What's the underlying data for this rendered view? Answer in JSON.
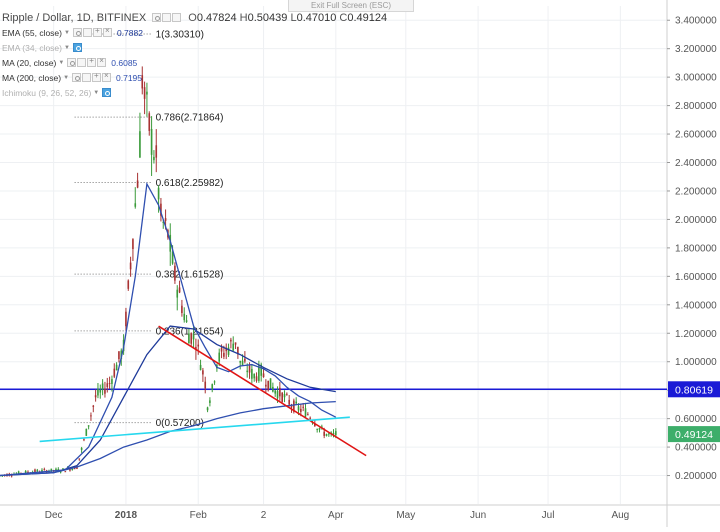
{
  "header": {
    "exit_fullscreen": "Exit Full Screen (ESC)",
    "symbol": "Ripple / Dollar, 1D, BITFINEX",
    "ohlc": {
      "O": "0.47824",
      "H": "0.50439",
      "L": "0.47010",
      "C": "0.49124"
    }
  },
  "indicators": [
    {
      "label": "EMA (55, close)",
      "value": "0.7882",
      "color": "#1e3a9a",
      "enabled": true
    },
    {
      "label": "EMA (34, close)",
      "value": "",
      "color": "#b0b0b0",
      "enabled": false
    },
    {
      "label": "MA (20, close)",
      "value": "0.6085",
      "color": "#2f4fb0",
      "enabled": true
    },
    {
      "label": "MA (200, close)",
      "value": "0.7195",
      "color": "#2f4fb0",
      "enabled": true
    },
    {
      "label": "Ichimoku (9, 26, 52, 26)",
      "value": "",
      "color": "#b0b0b0",
      "enabled": false
    }
  ],
  "chart_data": {
    "type": "candlestick",
    "title": "Ripple / Dollar, 1D, BITFINEX",
    "ylim": [
      0.0,
      3.5
    ],
    "y_ticks": [
      "0.200000",
      "0.400000",
      "0.600000",
      "0.800000",
      "1.000000",
      "1.200000",
      "1.400000",
      "1.600000",
      "1.800000",
      "2.000000",
      "2.200000",
      "2.400000",
      "2.600000",
      "2.800000",
      "3.000000",
      "3.200000",
      "3.400000"
    ],
    "x_ticks": [
      "Dec",
      "2018",
      "Feb",
      "2",
      "Apr",
      "May",
      "Jun",
      "Jul",
      "Aug"
    ],
    "x_tick_days": [
      0,
      31,
      62,
      90,
      121,
      151,
      182,
      212,
      243
    ],
    "x_range_days": [
      -23,
      263
    ],
    "last_price": {
      "value": 0.49124,
      "label": "0.49124",
      "color": "#3dae6a"
    },
    "horizontal_line": {
      "value": 0.80619,
      "label": "0.80619",
      "color": "#1a1ad6"
    },
    "fibonacci": [
      {
        "ratio": "1",
        "price": 3.3031,
        "label": "1(3.30310)"
      },
      {
        "ratio": "0.786",
        "price": 2.71864,
        "label": "0.786(2.71864)"
      },
      {
        "ratio": "0.618",
        "price": 2.25982,
        "label": "0.618(2.25982)"
      },
      {
        "ratio": "0.382",
        "price": 1.61528,
        "label": "0.382(1.61528)"
      },
      {
        "ratio": "0.236",
        "price": 1.21654,
        "label": "0.236(1.21654)"
      },
      {
        "ratio": "0",
        "price": 0.572,
        "label": "0(0.57200)"
      }
    ],
    "fib_x_days": [
      9,
      42
    ],
    "trendlines": [
      {
        "name": "resistance",
        "color": "#e01515",
        "points": [
          [
            45,
            1.25
          ],
          [
            134,
            0.34
          ]
        ]
      },
      {
        "name": "support",
        "color": "#27d8ee",
        "points": [
          [
            -6,
            0.44
          ],
          [
            127,
            0.61
          ]
        ]
      }
    ],
    "price_keypoints": [
      [
        -23,
        0.2
      ],
      [
        -8,
        0.23
      ],
      [
        5,
        0.24
      ],
      [
        10,
        0.26
      ],
      [
        18,
        0.75
      ],
      [
        24,
        0.85
      ],
      [
        30,
        1.1
      ],
      [
        36,
        2.3
      ],
      [
        37,
        2.55
      ],
      [
        38,
        3.0
      ],
      [
        39,
        2.85
      ],
      [
        41,
        2.65
      ],
      [
        44,
        2.4
      ],
      [
        46,
        2.0
      ],
      [
        49,
        1.9
      ],
      [
        52,
        1.6
      ],
      [
        55,
        1.4
      ],
      [
        58,
        1.2
      ],
      [
        61,
        1.15
      ],
      [
        63,
        1.0
      ],
      [
        65,
        0.85
      ],
      [
        66,
        0.7
      ],
      [
        68,
        0.8
      ],
      [
        70,
        1.0
      ],
      [
        72,
        1.05
      ],
      [
        75,
        1.1
      ],
      [
        78,
        1.15
      ],
      [
        80,
        1.0
      ],
      [
        83,
        0.95
      ],
      [
        86,
        0.9
      ],
      [
        89,
        0.93
      ],
      [
        92,
        0.85
      ],
      [
        95,
        0.8
      ],
      [
        99,
        0.75
      ],
      [
        102,
        0.7
      ],
      [
        105,
        0.67
      ],
      [
        108,
        0.65
      ],
      [
        111,
        0.6
      ],
      [
        113,
        0.55
      ],
      [
        116,
        0.5
      ],
      [
        119,
        0.48
      ],
      [
        121,
        0.49
      ]
    ],
    "ma_series": [
      {
        "name": "EMA 55",
        "color": "#1e3a9a",
        "points": [
          [
            -23,
            0.2
          ],
          [
            0,
            0.22
          ],
          [
            10,
            0.27
          ],
          [
            20,
            0.45
          ],
          [
            30,
            0.75
          ],
          [
            40,
            1.05
          ],
          [
            50,
            1.25
          ],
          [
            60,
            1.23
          ],
          [
            70,
            1.12
          ],
          [
            80,
            1.05
          ],
          [
            90,
            0.96
          ],
          [
            100,
            0.88
          ],
          [
            110,
            0.82
          ],
          [
            121,
            0.79
          ]
        ]
      },
      {
        "name": "MA 20",
        "color": "#2f4fb0",
        "points": [
          [
            -23,
            0.2
          ],
          [
            5,
            0.24
          ],
          [
            15,
            0.4
          ],
          [
            25,
            0.75
          ],
          [
            30,
            1.1
          ],
          [
            35,
            1.6
          ],
          [
            40,
            2.25
          ],
          [
            45,
            2.1
          ],
          [
            50,
            1.85
          ],
          [
            55,
            1.55
          ],
          [
            60,
            1.25
          ],
          [
            65,
            1.1
          ],
          [
            70,
            0.96
          ],
          [
            75,
            0.93
          ],
          [
            80,
            0.97
          ],
          [
            85,
            0.98
          ],
          [
            90,
            0.95
          ],
          [
            95,
            0.9
          ],
          [
            100,
            0.82
          ],
          [
            105,
            0.76
          ],
          [
            110,
            0.72
          ],
          [
            115,
            0.66
          ],
          [
            121,
            0.61
          ]
        ]
      },
      {
        "name": "MA 200",
        "color": "#2f4fb0",
        "points": [
          [
            -23,
            0.2
          ],
          [
            0,
            0.22
          ],
          [
            10,
            0.26
          ],
          [
            20,
            0.32
          ],
          [
            30,
            0.4
          ],
          [
            40,
            0.45
          ],
          [
            50,
            0.51
          ],
          [
            60,
            0.55
          ],
          [
            70,
            0.6
          ],
          [
            80,
            0.64
          ],
          [
            90,
            0.67
          ],
          [
            100,
            0.69
          ],
          [
            110,
            0.71
          ],
          [
            121,
            0.72
          ]
        ]
      }
    ],
    "candle_up_color": "#3a9a3a",
    "candle_down_color": "#a83232",
    "grid": true
  }
}
